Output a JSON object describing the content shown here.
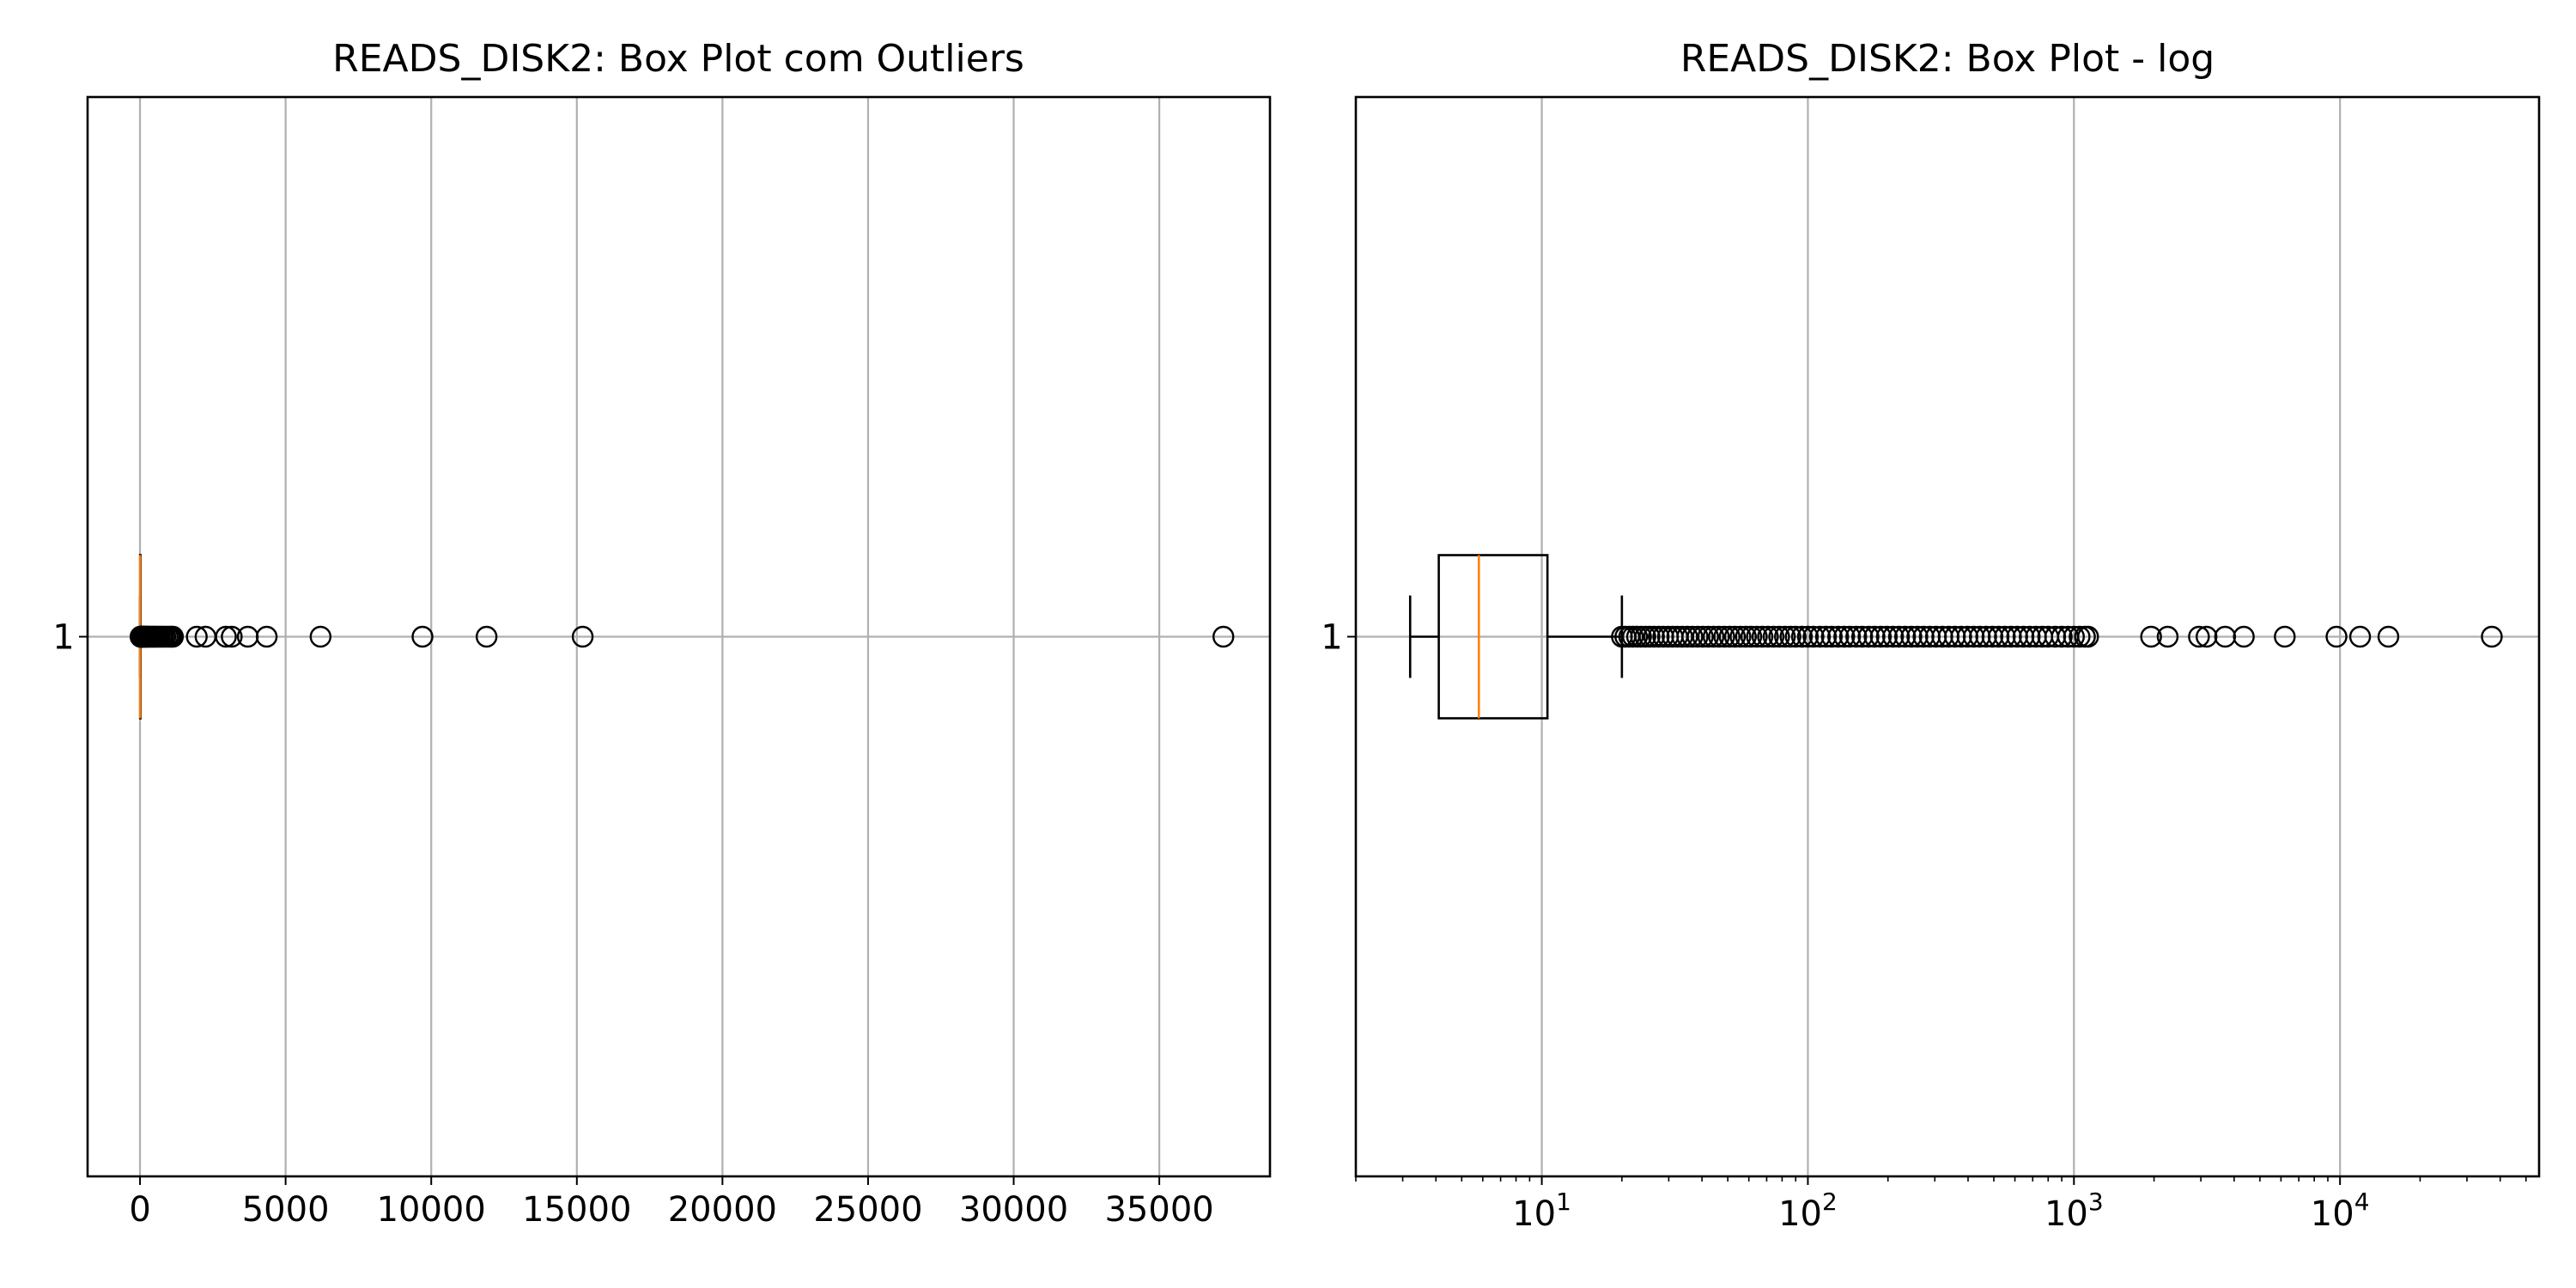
{
  "colors": {
    "grid": "#b0b0b0",
    "median": "#ff7f0e",
    "frame": "#000000",
    "marker": "#000000",
    "background": "#ffffff"
  },
  "chart_data": [
    {
      "type": "box",
      "title": "READS_DISK2: Box Plot com Outliers",
      "orientation": "horizontal",
      "xscale": "linear",
      "xlim": [
        -1800,
        38800
      ],
      "xticks": [
        0,
        5000,
        10000,
        15000,
        20000,
        25000,
        30000,
        35000
      ],
      "xtick_labels": [
        "0",
        "5000",
        "10000",
        "15000",
        "20000",
        "25000",
        "30000",
        "35000"
      ],
      "yticks": [
        "1"
      ],
      "grid": true,
      "box": {
        "whisker_low": 3.2,
        "q1": 4.1,
        "median": 5.8,
        "q3": 10.5,
        "whisker_high": 20
      },
      "outliers": [
        20,
        23,
        27,
        32,
        38,
        45,
        52,
        60,
        70,
        82,
        95,
        110,
        128,
        148,
        170,
        195,
        225,
        260,
        300,
        340,
        380,
        430,
        470,
        520,
        560,
        620,
        680,
        750,
        800,
        870,
        950,
        1020,
        1080,
        1130,
        1950,
        2250,
        2950,
        3150,
        3700,
        4350,
        6200,
        9700,
        11900,
        15200,
        37200
      ]
    },
    {
      "type": "box",
      "title": "READS_DISK2: Box Plot - log",
      "orientation": "horizontal",
      "xscale": "log",
      "xlim": [
        2.0,
        56000
      ],
      "xticks": [
        10,
        100,
        1000,
        10000
      ],
      "xtick_labels": [
        {
          "base": "10",
          "exp": "1"
        },
        {
          "base": "10",
          "exp": "2"
        },
        {
          "base": "10",
          "exp": "3"
        },
        {
          "base": "10",
          "exp": "4"
        }
      ],
      "yticks": [
        "1"
      ],
      "grid": true,
      "box": {
        "whisker_low": 3.2,
        "q1": 4.1,
        "median": 5.8,
        "q3": 10.5,
        "whisker_high": 20
      },
      "outliers": [
        20,
        20.6,
        21.3,
        22,
        22.8,
        23.6,
        24.5,
        25.4,
        26.4,
        27.5,
        28.6,
        29.8,
        31,
        32.3,
        33.7,
        35.2,
        36.8,
        38.5,
        40.3,
        42.2,
        44.2,
        46.3,
        48.5,
        50.8,
        53.2,
        55.8,
        58.5,
        61.3,
        64.3,
        67.5,
        70.8,
        74.3,
        78,
        82,
        86,
        90,
        95,
        100,
        105,
        111,
        117,
        123,
        130,
        137,
        144,
        152,
        160,
        169,
        178,
        188,
        198,
        209,
        220,
        232,
        245,
        258,
        272,
        287,
        303,
        320,
        338,
        357,
        377,
        398,
        420,
        443,
        468,
        494,
        521,
        550,
        580,
        612,
        646,
        682,
        720,
        760,
        800,
        850,
        900,
        950,
        1000,
        1050,
        1100,
        1130,
        1950,
        2250,
        2950,
        3150,
        3700,
        4350,
        6200,
        9700,
        11900,
        15200,
        37200
      ]
    }
  ]
}
